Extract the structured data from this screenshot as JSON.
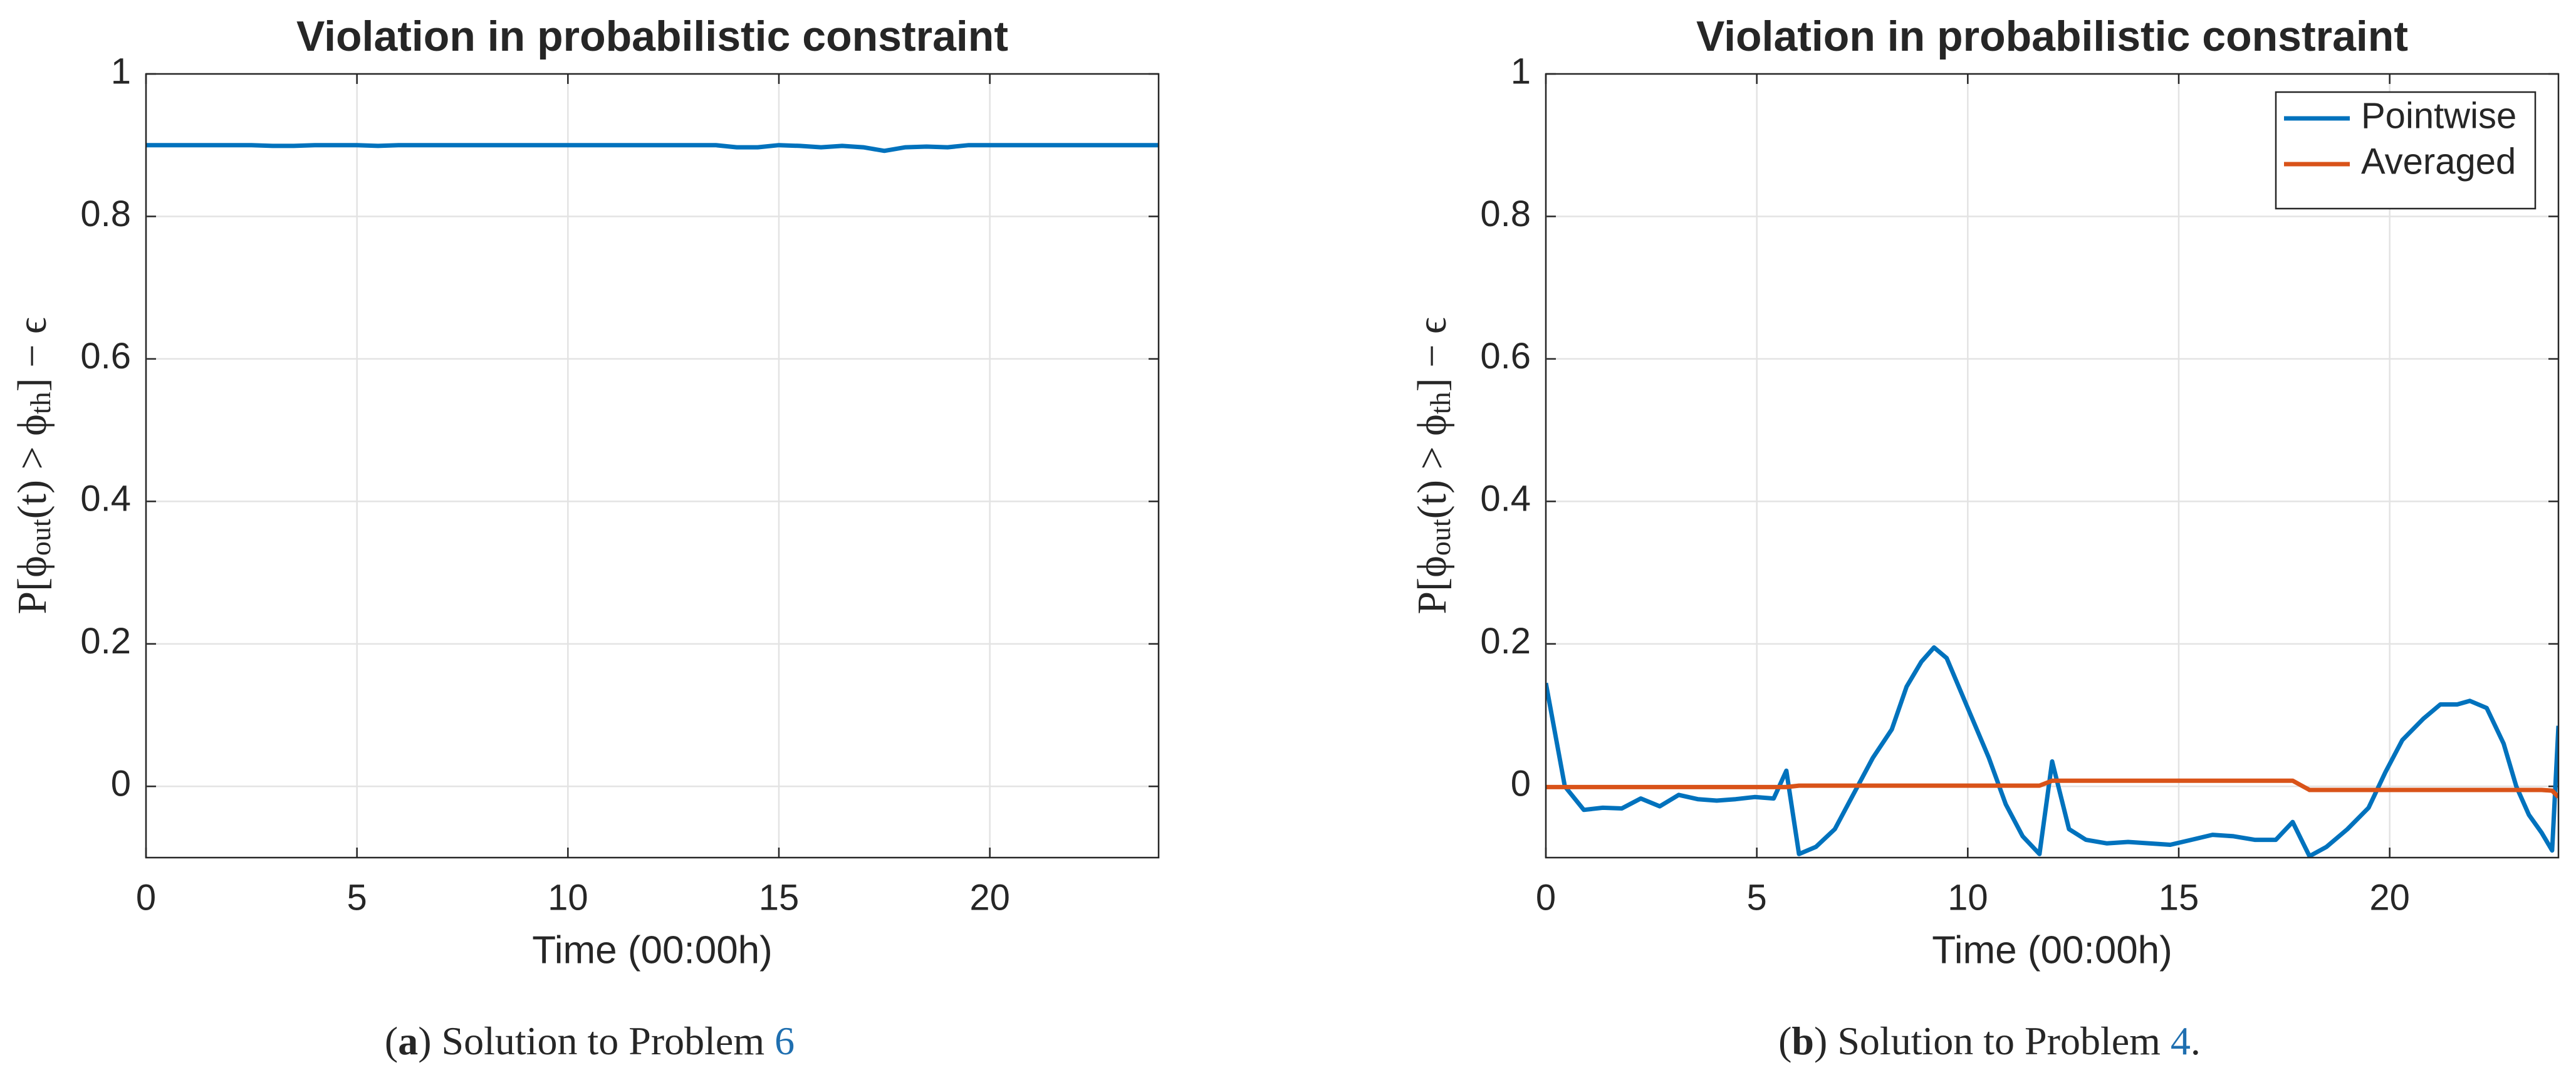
{
  "chart_data": [
    {
      "type": "line",
      "title": "Violation in probabilistic constraint",
      "xlabel": "Time (00:00h)",
      "ylabel": [
        "P[ϕ",
        "out",
        "(t) > ϕ",
        "th",
        "] − ϵ"
      ],
      "caption": [
        "(",
        "a",
        ") Solution to Problem ",
        "6"
      ],
      "x": [
        0,
        0.5,
        1,
        1.5,
        2,
        2.5,
        3,
        3.5,
        4,
        4.5,
        5,
        5.5,
        6,
        6.5,
        7,
        7.5,
        8,
        8.5,
        9,
        9.5,
        10,
        10.5,
        11,
        11.5,
        12,
        12.5,
        13,
        13.5,
        14,
        14.5,
        15,
        15.5,
        16,
        16.5,
        17,
        17.5,
        18,
        18.5,
        19,
        19.5,
        20,
        20.5,
        21,
        21.5,
        22,
        22.5,
        23,
        23.5,
        24
      ],
      "series": [
        {
          "color": "#0072BD",
          "values": [
            0.9,
            0.9,
            0.9,
            0.9,
            0.9,
            0.9,
            0.899,
            0.899,
            0.9,
            0.9,
            0.9,
            0.899,
            0.9,
            0.9,
            0.9,
            0.9,
            0.9,
            0.9,
            0.9,
            0.9,
            0.9,
            0.9,
            0.9,
            0.9,
            0.9,
            0.9,
            0.9,
            0.9,
            0.897,
            0.897,
            0.9,
            0.899,
            0.897,
            0.899,
            0.897,
            0.892,
            0.897,
            0.898,
            0.897,
            0.9,
            0.9,
            0.9,
            0.9,
            0.9,
            0.9,
            0.9,
            0.9,
            0.9,
            0.9
          ]
        }
      ],
      "xlim": [
        0,
        24
      ],
      "ylim": [
        -0.1,
        1
      ],
      "xticks": [
        0,
        5,
        10,
        15,
        20
      ],
      "yticks": [
        0,
        0.2,
        0.4,
        0.6,
        0.8,
        1
      ],
      "grid": true
    },
    {
      "type": "line",
      "title": "Violation in probabilistic constraint",
      "xlabel": "Time (00:00h)",
      "ylabel": [
        "P[ϕ",
        "out",
        "(t) > ϕ",
        "th",
        "] − ϵ"
      ],
      "caption": [
        "(",
        "b",
        ") Solution to Problem ",
        "4",
        "."
      ],
      "x": [
        0,
        0.45,
        0.9,
        1.35,
        1.8,
        2.25,
        2.7,
        3.15,
        3.6,
        4.05,
        4.5,
        4.95,
        5.4,
        5.7,
        6.0,
        6.4,
        6.85,
        7.3,
        7.75,
        8.2,
        8.55,
        8.9,
        9.2,
        9.5,
        10.0,
        10.5,
        10.9,
        11.3,
        11.7,
        12.0,
        12.4,
        12.8,
        13.3,
        13.8,
        14.3,
        14.8,
        15.3,
        15.8,
        16.3,
        16.8,
        17.3,
        17.7,
        18.1,
        18.5,
        19.0,
        19.5,
        19.9,
        20.3,
        20.8,
        21.2,
        21.6,
        21.9,
        22.3,
        22.7,
        23.0,
        23.3,
        23.6,
        23.85,
        24.0
      ],
      "series": [
        {
          "name": "Pointwise",
          "color": "#0072BD",
          "values": [
            0.145,
            0.0,
            -0.033,
            -0.03,
            -0.031,
            -0.017,
            -0.028,
            -0.012,
            -0.018,
            -0.02,
            -0.018,
            -0.015,
            -0.017,
            0.022,
            -0.095,
            -0.085,
            -0.06,
            -0.01,
            0.04,
            0.08,
            0.14,
            0.175,
            0.195,
            0.18,
            0.11,
            0.04,
            -0.025,
            -0.07,
            -0.095,
            0.035,
            -0.06,
            -0.075,
            -0.08,
            -0.078,
            -0.08,
            -0.082,
            -0.075,
            -0.068,
            -0.07,
            -0.075,
            -0.075,
            -0.05,
            -0.098,
            -0.085,
            -0.06,
            -0.03,
            0.02,
            0.065,
            0.095,
            0.115,
            0.115,
            0.12,
            0.11,
            0.06,
            0.0,
            -0.04,
            -0.065,
            -0.09,
            0.085
          ]
        },
        {
          "name": "Averaged",
          "color": "#D95319",
          "values": [
            -0.001,
            -0.001,
            -0.001,
            -0.001,
            -0.001,
            -0.001,
            -0.001,
            -0.001,
            -0.001,
            -0.001,
            -0.001,
            -0.001,
            -0.001,
            -0.001,
            0.001,
            0.001,
            0.001,
            0.001,
            0.001,
            0.001,
            0.001,
            0.001,
            0.001,
            0.001,
            0.001,
            0.001,
            0.001,
            0.001,
            0.001,
            0.008,
            0.008,
            0.008,
            0.008,
            0.008,
            0.008,
            0.008,
            0.008,
            0.008,
            0.008,
            0.008,
            0.008,
            0.008,
            -0.005,
            -0.005,
            -0.005,
            -0.005,
            -0.005,
            -0.005,
            -0.005,
            -0.005,
            -0.005,
            -0.005,
            -0.005,
            -0.005,
            -0.005,
            -0.005,
            -0.005,
            -0.006,
            -0.015
          ]
        }
      ],
      "xlim": [
        0,
        24
      ],
      "ylim": [
        -0.1,
        1
      ],
      "xticks": [
        0,
        5,
        10,
        15,
        20
      ],
      "yticks": [
        0,
        0.2,
        0.4,
        0.6,
        0.8,
        1
      ],
      "grid": true,
      "legend": "northeast"
    }
  ]
}
